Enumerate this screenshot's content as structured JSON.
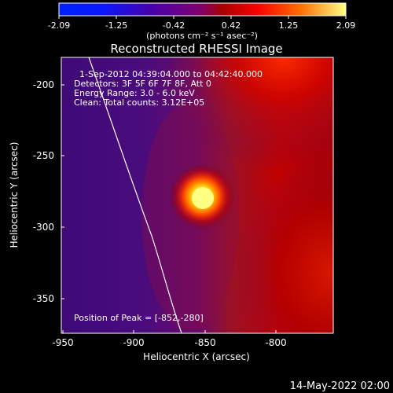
{
  "chart_data": {
    "type": "heatmap",
    "title": "Reconstructed RHESSI Image",
    "xlabel": "Heliocentric X (arcsec)",
    "ylabel": "Heliocentric Y (arcsec)",
    "xlim": [
      -958,
      -772
    ],
    "ylim": [
      -373,
      -174
    ],
    "x_ticks": [
      -950,
      -900,
      -850,
      -800
    ],
    "y_ticks": [
      -200,
      -250,
      -300,
      -350
    ],
    "colorbar": {
      "ticks": [
        -2.09,
        -1.25,
        -0.42,
        0.42,
        1.25,
        2.09
      ],
      "tick_labels": [
        "-2.09",
        "-1.25",
        "-0.42",
        "0.42",
        "1.25",
        "2.09"
      ],
      "label": "(photons cm⁻² s⁻¹ asec⁻²)"
    },
    "info": {
      "time": "1-Sep-2012 04:39:04.000 to 04:42:40.000",
      "detectors": "Detectors: 3F 5F 6F 7F 8F, Att 0",
      "energy": "Energy Range: 3.0 - 6.0 keV",
      "clean": "Clean:    Total counts: 3.12E+05",
      "peak": "Position of Peak = [-852,-280]"
    },
    "peak": {
      "x": -852,
      "y": -280
    },
    "footer": "14-May-2022 02:00",
    "grid": false
  }
}
